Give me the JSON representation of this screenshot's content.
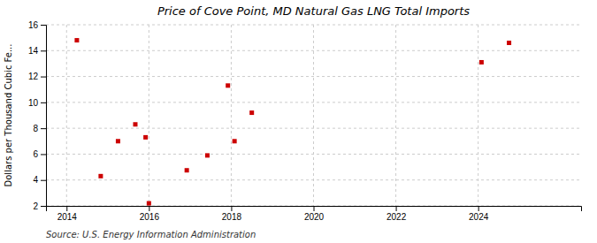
{
  "chart_data": {
    "type": "scatter",
    "title": "Price of Cove Point, MD Natural Gas LNG Total Imports",
    "ylabel": "Dollars per Thousand Cubic Fe...",
    "source": "Source: U.S. Energy Information Administration",
    "x": [
      2014.25,
      2014.83,
      2015.25,
      2015.67,
      2015.92,
      2016.0,
      2016.92,
      2017.42,
      2017.92,
      2018.08,
      2018.5,
      2024.08,
      2024.75
    ],
    "values": [
      14.8,
      4.3,
      7.0,
      8.3,
      7.3,
      2.2,
      4.75,
      5.9,
      11.3,
      7.0,
      9.2,
      13.1,
      14.6
    ],
    "color": "#cc0000",
    "marker": "square",
    "xlim": [
      2013.5,
      2026.5
    ],
    "ylim": [
      2,
      16
    ],
    "xticks": [
      2014,
      2016,
      2018,
      2020,
      2022,
      2024
    ],
    "yticks": [
      2,
      4,
      6,
      8,
      10,
      12,
      14,
      16
    ],
    "grid": true
  }
}
